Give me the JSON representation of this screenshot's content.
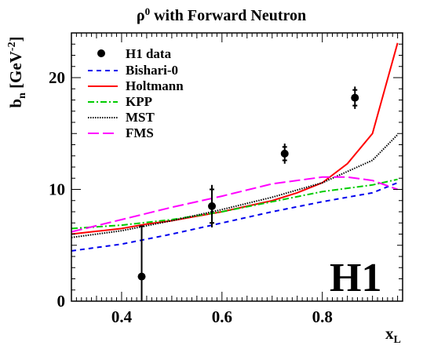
{
  "chart_data": {
    "type": "line",
    "title_prefix": "ρ",
    "title_sup": "0",
    "title_suffix": " with Forward Neutron",
    "ylabel_main": "b",
    "ylabel_sub": "n",
    "ylabel_bracket": " [GeV",
    "ylabel_sup": "-2",
    "ylabel_close": "]",
    "xlabel_main": "x",
    "xlabel_sub": "L",
    "xlim": [
      0.3,
      0.96
    ],
    "ylim": [
      0,
      24
    ],
    "x_ticks": [
      0.4,
      0.6,
      0.8
    ],
    "x_tick_labels": [
      "0.4",
      "0.6",
      "0.8"
    ],
    "y_ticks": [
      0,
      10,
      20
    ],
    "y_tick_labels": [
      "0",
      "10",
      "20"
    ],
    "legend_position": "top-left",
    "experiment_label": "H1",
    "data_points": {
      "name": "H1 data",
      "x": [
        0.44,
        0.58,
        0.725,
        0.865
      ],
      "y": [
        2.2,
        8.5,
        13.2,
        18.2
      ],
      "y_err_stat": [
        4.5,
        1.5,
        0.6,
        0.7
      ],
      "y_err_sys": [
        4.5,
        1.9,
        0.9,
        1.0
      ]
    },
    "series": [
      {
        "name": "Bishari-0",
        "color": "#0000ee",
        "dash": "6,5",
        "x": [
          0.3,
          0.4,
          0.5,
          0.6,
          0.7,
          0.8,
          0.9,
          0.95
        ],
        "y": [
          4.5,
          5.1,
          6.0,
          7.0,
          8.0,
          8.9,
          9.7,
          10.6
        ]
      },
      {
        "name": "Holtmann",
        "color": "#ff0000",
        "dash": "",
        "x": [
          0.3,
          0.35,
          0.4,
          0.45,
          0.5,
          0.55,
          0.6,
          0.65,
          0.7,
          0.75,
          0.8,
          0.85,
          0.9,
          0.95
        ],
        "y": [
          6.0,
          6.25,
          6.5,
          6.9,
          7.2,
          7.6,
          8.0,
          8.5,
          9.0,
          9.7,
          10.6,
          12.3,
          15.0,
          23.1
        ]
      },
      {
        "name": "KPP",
        "color": "#00cc00",
        "dash": "8,3,2,3",
        "x": [
          0.3,
          0.4,
          0.5,
          0.6,
          0.7,
          0.8,
          0.9,
          0.95
        ],
        "y": [
          6.5,
          6.8,
          7.3,
          8.0,
          8.9,
          9.8,
          10.4,
          10.9
        ]
      },
      {
        "name": "MST",
        "color": "#000000",
        "dash": "1.5,1.5",
        "x": [
          0.3,
          0.4,
          0.5,
          0.6,
          0.7,
          0.8,
          0.9,
          0.95
        ],
        "y": [
          5.7,
          6.3,
          7.2,
          8.2,
          9.3,
          10.6,
          12.6,
          14.9
        ]
      },
      {
        "name": "FMS",
        "color": "#ff00ff",
        "dash": "14,5",
        "x": [
          0.3,
          0.4,
          0.5,
          0.6,
          0.7,
          0.8,
          0.85,
          0.9,
          0.95
        ],
        "y": [
          6.2,
          7.3,
          8.4,
          9.4,
          10.5,
          11.1,
          11.1,
          10.8,
          10.0
        ]
      }
    ]
  }
}
